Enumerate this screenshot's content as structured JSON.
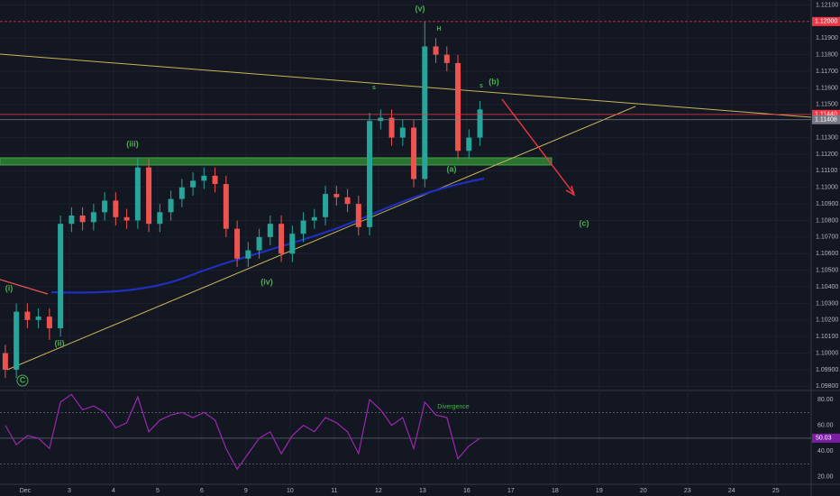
{
  "chart_data": {
    "type": "candlestick",
    "up_color": "#26a69a",
    "down_color": "#ef5350",
    "xlim": [
      -0.57,
      17.8
    ],
    "xticks": [
      {
        "value": 0,
        "label": "Dec"
      },
      {
        "value": 1,
        "label": "3"
      },
      {
        "value": 2,
        "label": "4"
      },
      {
        "value": 3,
        "label": "5"
      },
      {
        "value": 4,
        "label": "6"
      },
      {
        "value": 5,
        "label": "9"
      },
      {
        "value": 6,
        "label": "10"
      },
      {
        "value": 7,
        "label": "11"
      },
      {
        "value": 8,
        "label": "12"
      },
      {
        "value": 9,
        "label": "13"
      },
      {
        "value": 10,
        "label": "16"
      },
      {
        "value": 11,
        "label": "17"
      },
      {
        "value": 12,
        "label": "18"
      },
      {
        "value": 13,
        "label": "19"
      },
      {
        "value": 14,
        "label": "20"
      },
      {
        "value": 15,
        "label": "23"
      },
      {
        "value": 16,
        "label": "24"
      },
      {
        "value": 17,
        "label": "25"
      }
    ],
    "ylim": [
      1.0978,
      1.1213
    ],
    "yticks": [
      {
        "value": 1.121,
        "label": "1.12100"
      },
      {
        "value": 1.119,
        "label": "1.11900"
      },
      {
        "value": 1.118,
        "label": "1.11800"
      },
      {
        "value": 1.117,
        "label": "1.11700"
      },
      {
        "value": 1.116,
        "label": "1.11600"
      },
      {
        "value": 1.115,
        "label": "1.11500"
      },
      {
        "value": 1.113,
        "label": "1.11300"
      },
      {
        "value": 1.112,
        "label": "1.11200"
      },
      {
        "value": 1.111,
        "label": "1.11100"
      },
      {
        "value": 1.11,
        "label": "1.11000"
      },
      {
        "value": 1.109,
        "label": "1.10900"
      },
      {
        "value": 1.108,
        "label": "1.10800"
      },
      {
        "value": 1.107,
        "label": "1.10700"
      },
      {
        "value": 1.106,
        "label": "1.10600"
      },
      {
        "value": 1.105,
        "label": "1.10500"
      },
      {
        "value": 1.104,
        "label": "1.10400"
      },
      {
        "value": 1.103,
        "label": "1.10300"
      },
      {
        "value": 1.102,
        "label": "1.10200"
      },
      {
        "value": 1.101,
        "label": "1.10100"
      },
      {
        "value": 1.1,
        "label": "1.10000"
      },
      {
        "value": 1.099,
        "label": "1.09900"
      },
      {
        "value": 1.098,
        "label": "1.09800"
      }
    ],
    "price_labels": [
      {
        "value": 1.12,
        "label": "1.12000",
        "color": "#f23645"
      },
      {
        "value": 1.1144,
        "label": "1.11440",
        "color": "#f23645"
      },
      {
        "value": 1.11408,
        "label": "1.11408",
        "color": "#787b86"
      }
    ],
    "x": [
      -0.45,
      -0.2,
      0.05,
      0.3,
      0.55,
      0.8,
      1.05,
      1.3,
      1.55,
      1.8,
      2.05,
      2.3,
      2.55,
      2.8,
      3.05,
      3.3,
      3.55,
      3.8,
      4.05,
      4.3,
      4.55,
      4.8,
      5.05,
      5.3,
      5.55,
      5.8,
      6.05,
      6.3,
      6.55,
      6.8,
      7.05,
      7.3,
      7.55,
      7.8,
      8.05,
      8.3,
      8.55,
      8.8,
      9.05,
      9.3,
      9.55,
      9.8,
      10.05,
      10.3
    ],
    "open": [
      1.1,
      1.099,
      1.1025,
      1.102,
      1.1022,
      1.1015,
      1.1078,
      1.1083,
      1.1079,
      1.1085,
      1.1092,
      1.1082,
      1.108,
      1.1112,
      1.1078,
      1.1085,
      1.1093,
      1.11,
      1.1104,
      1.1107,
      1.1102,
      1.1075,
      1.1057,
      1.1062,
      1.107,
      1.1078,
      1.106,
      1.1072,
      1.108,
      1.1082,
      1.1096,
      1.1094,
      1.109,
      1.1076,
      1.114,
      1.1142,
      1.113,
      1.1136,
      1.1105,
      1.1185,
      1.118,
      1.1175,
      1.1122,
      1.113
    ],
    "high": [
      1.1005,
      1.103,
      1.103,
      1.1027,
      1.1027,
      1.1083,
      1.1088,
      1.1088,
      1.109,
      1.1097,
      1.1097,
      1.1087,
      1.1118,
      1.1117,
      1.109,
      1.1098,
      1.1105,
      1.1109,
      1.1112,
      1.1112,
      1.1107,
      1.108,
      1.1067,
      1.1075,
      1.1083,
      1.1083,
      1.1077,
      1.1085,
      1.1087,
      1.1101,
      1.1101,
      1.1099,
      1.1095,
      1.1145,
      1.1147,
      1.1147,
      1.1141,
      1.1141,
      1.12,
      1.119,
      1.1185,
      1.118,
      1.1135,
      1.1152
    ],
    "low": [
      1.0985,
      1.0985,
      1.1015,
      1.1015,
      1.1008,
      1.101,
      1.1073,
      1.1074,
      1.1074,
      1.108,
      1.1077,
      1.1075,
      1.1075,
      1.1073,
      1.1073,
      1.108,
      1.1088,
      1.1095,
      1.1099,
      1.1097,
      1.107,
      1.1052,
      1.1052,
      1.1057,
      1.1065,
      1.1055,
      1.1055,
      1.1067,
      1.1075,
      1.1077,
      1.1089,
      1.1085,
      1.1071,
      1.1071,
      1.1135,
      1.1125,
      1.1125,
      1.11,
      1.11,
      1.1175,
      1.117,
      1.1117,
      1.1117,
      1.1125
    ],
    "close": [
      1.099,
      1.1025,
      1.102,
      1.1022,
      1.1015,
      1.1078,
      1.1083,
      1.1079,
      1.1085,
      1.1092,
      1.1082,
      1.108,
      1.1112,
      1.1078,
      1.1085,
      1.1093,
      1.11,
      1.1104,
      1.1107,
      1.1102,
      1.1075,
      1.1057,
      1.1062,
      1.107,
      1.1078,
      1.106,
      1.1072,
      1.108,
      1.1082,
      1.1096,
      1.1094,
      1.109,
      1.1076,
      1.114,
      1.1142,
      1.113,
      1.1136,
      1.1105,
      1.1185,
      1.118,
      1.1175,
      1.1122,
      1.113,
      1.1147
    ],
    "annotations": [
      "(i)",
      "(ii)",
      "(iii)",
      "(iv)",
      "(v)",
      "(a)",
      "(b)",
      "(c)",
      "C",
      "s",
      "H",
      "s",
      "Divergence"
    ],
    "rsi": {
      "color": "#9c27b0",
      "ylim": [
        15,
        87
      ],
      "yticks": [
        {
          "value": 80,
          "label": "80.00"
        },
        {
          "value": 60,
          "label": "60.00"
        },
        {
          "value": 40,
          "label": "40.00"
        },
        {
          "value": 20,
          "label": "20.00"
        }
      ],
      "bands": [
        70,
        50,
        30
      ],
      "values": [
        60,
        45,
        52,
        50,
        42,
        78,
        84,
        72,
        75,
        70,
        58,
        62,
        82,
        55,
        64,
        68,
        70,
        66,
        70,
        64,
        42,
        26,
        38,
        50,
        55,
        38,
        52,
        60,
        55,
        66,
        62,
        55,
        38,
        80,
        72,
        60,
        66,
        42,
        78,
        68,
        66,
        34,
        44,
        50.03
      ],
      "current": {
        "value": 50.03,
        "label": "50.03"
      }
    }
  }
}
